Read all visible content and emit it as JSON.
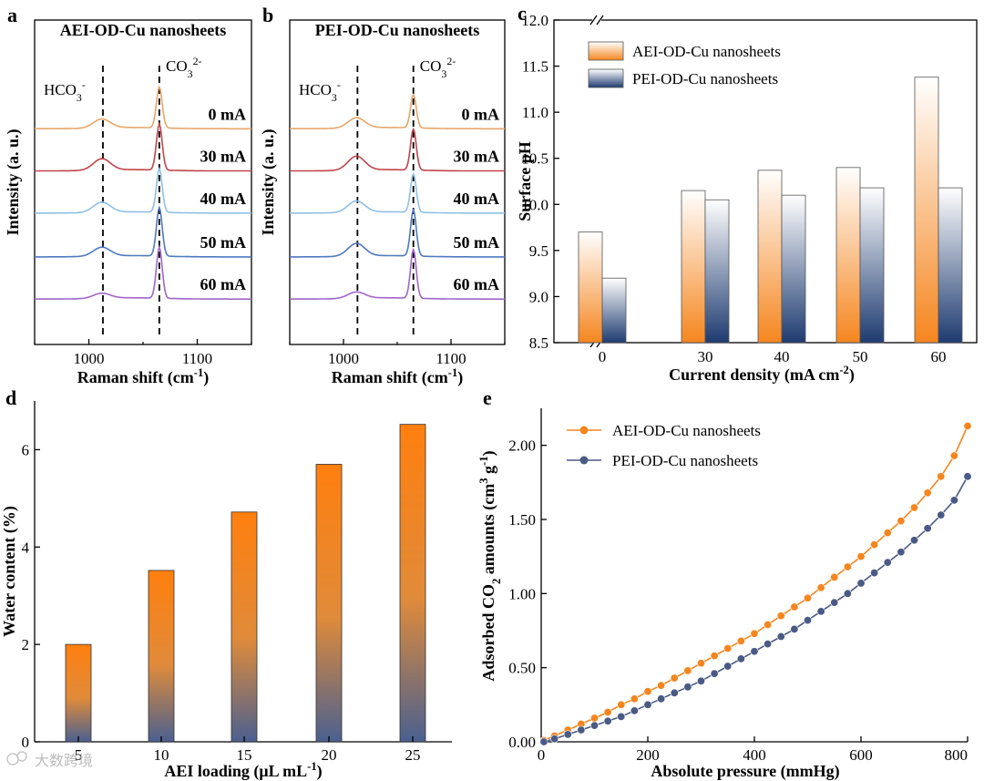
{
  "figure": {
    "watermark": "大数跨境"
  },
  "chart_data": [
    {
      "id": "a",
      "panel_label": "a",
      "type": "line",
      "title": "AEI-OD-Cu nanosheets",
      "xlabel": "Raman shift (cm⁻¹)",
      "ylabel": "Intensity (a. u.)",
      "xlim": [
        950,
        1150
      ],
      "xticks": [
        "1000",
        "1100"
      ],
      "annotations": {
        "hco3": "HCO₃⁻",
        "co3": "CO₃²⁻"
      },
      "reference_lines": [
        1013,
        1065
      ],
      "series": [
        {
          "name": "0 mA",
          "color": "#E8A66A",
          "hco3_peak": 0.35,
          "co3_peak": 1.6
        },
        {
          "name": "30 mA",
          "color": "#C0454A",
          "hco3_peak": 0.45,
          "co3_peak": 1.8
        },
        {
          "name": "40 mA",
          "color": "#8EC0E6",
          "hco3_peak": 0.4,
          "co3_peak": 1.7
        },
        {
          "name": "50 mA",
          "color": "#4F79C0",
          "hco3_peak": 0.35,
          "co3_peak": 1.9
        },
        {
          "name": "60 mA",
          "color": "#A066C8",
          "hco3_peak": 0.2,
          "co3_peak": 2.0
        }
      ]
    },
    {
      "id": "b",
      "panel_label": "b",
      "type": "line",
      "title": "PEI-OD-Cu nanosheets",
      "xlabel": "Raman shift (cm⁻¹)",
      "ylabel": "Intensity (a. u.)",
      "xlim": [
        950,
        1150
      ],
      "xticks": [
        "1000",
        "1100"
      ],
      "annotations": {
        "hco3": "HCO₃⁻",
        "co3": "CO₃²⁻"
      },
      "reference_lines": [
        1013,
        1065
      ],
      "series": [
        {
          "name": "0 mA",
          "color": "#E8A66A",
          "hco3_peak": 0.4,
          "co3_peak": 1.3
        },
        {
          "name": "30 mA",
          "color": "#C0454A",
          "hco3_peak": 0.55,
          "co3_peak": 1.6
        },
        {
          "name": "40 mA",
          "color": "#8EC0E6",
          "hco3_peak": 0.45,
          "co3_peak": 1.5
        },
        {
          "name": "50 mA",
          "color": "#4F79C0",
          "hco3_peak": 0.5,
          "co3_peak": 1.8
        },
        {
          "name": "60 mA",
          "color": "#A066C8",
          "hco3_peak": 0.25,
          "co3_peak": 1.9
        }
      ]
    },
    {
      "id": "c",
      "panel_label": "c",
      "type": "bar",
      "xlabel": "Current density (mA cm⁻²)",
      "ylabel": "Surface pH",
      "categories": [
        "0",
        "30",
        "40",
        "50",
        "60"
      ],
      "ylim": [
        8.5,
        12.0
      ],
      "yticks": [
        "8.5",
        "9.0",
        "9.5",
        "10.0",
        "10.5",
        "11.0",
        "11.5",
        "12.0"
      ],
      "series": [
        {
          "name": "AEI-OD-Cu nanosheets",
          "values": [
            9.7,
            10.15,
            10.37,
            10.4,
            11.38
          ],
          "gradient": [
            "#FFFFFF",
            "#F5861F"
          ]
        },
        {
          "name": "PEI-OD-Cu nanosheets",
          "values": [
            9.2,
            10.05,
            10.1,
            10.18,
            10.18
          ],
          "gradient": [
            "#FFFFFF",
            "#1E3B70"
          ]
        }
      ]
    },
    {
      "id": "d",
      "panel_label": "d",
      "type": "bar",
      "xlabel": "AEI loading (μL mL⁻¹)",
      "ylabel": "Water content (%)",
      "categories": [
        "5",
        "10",
        "15",
        "20",
        "25"
      ],
      "values": [
        2.0,
        3.52,
        4.72,
        5.7,
        6.52
      ],
      "ylim": [
        0,
        7
      ],
      "yticks": [
        "0",
        "2",
        "4",
        "6"
      ],
      "gradient": [
        "#FF7F0E",
        "#4A6090"
      ]
    },
    {
      "id": "e",
      "panel_label": "e",
      "type": "line",
      "xlabel": "Absolute pressure (mmHg)",
      "ylabel": "Adsorbed CO₂ amounts (cm³ g⁻¹)",
      "xlim": [
        0,
        800
      ],
      "ylim": [
        0,
        2.25
      ],
      "xticks": [
        "0",
        "200",
        "400",
        "600",
        "800"
      ],
      "yticks": [
        "0.00",
        "0.50",
        "1.00",
        "1.50",
        "2.00"
      ],
      "series": [
        {
          "name": "AEI-OD-Cu nanosheets",
          "color": "#F5861F",
          "x": [
            5,
            25,
            50,
            75,
            100,
            125,
            150,
            175,
            200,
            225,
            250,
            275,
            300,
            325,
            350,
            375,
            400,
            425,
            450,
            475,
            500,
            525,
            550,
            575,
            600,
            625,
            650,
            675,
            700,
            725,
            750,
            775,
            800
          ],
          "y": [
            0.01,
            0.04,
            0.08,
            0.12,
            0.16,
            0.2,
            0.25,
            0.29,
            0.34,
            0.38,
            0.43,
            0.48,
            0.53,
            0.58,
            0.63,
            0.68,
            0.73,
            0.79,
            0.85,
            0.91,
            0.97,
            1.04,
            1.11,
            1.18,
            1.25,
            1.33,
            1.41,
            1.49,
            1.58,
            1.68,
            1.79,
            1.93,
            2.13
          ]
        },
        {
          "name": "PEI-OD-Cu nanosheets",
          "color": "#4A5A85",
          "x": [
            5,
            25,
            50,
            75,
            100,
            125,
            150,
            175,
            200,
            225,
            250,
            275,
            300,
            325,
            350,
            375,
            400,
            425,
            450,
            475,
            500,
            525,
            550,
            575,
            600,
            625,
            650,
            675,
            700,
            725,
            750,
            775,
            800
          ],
          "y": [
            0.0,
            0.02,
            0.05,
            0.08,
            0.11,
            0.14,
            0.17,
            0.21,
            0.25,
            0.29,
            0.33,
            0.37,
            0.41,
            0.46,
            0.51,
            0.56,
            0.61,
            0.66,
            0.71,
            0.76,
            0.82,
            0.88,
            0.94,
            1.0,
            1.07,
            1.14,
            1.21,
            1.28,
            1.36,
            1.44,
            1.53,
            1.63,
            1.79
          ]
        }
      ]
    }
  ]
}
